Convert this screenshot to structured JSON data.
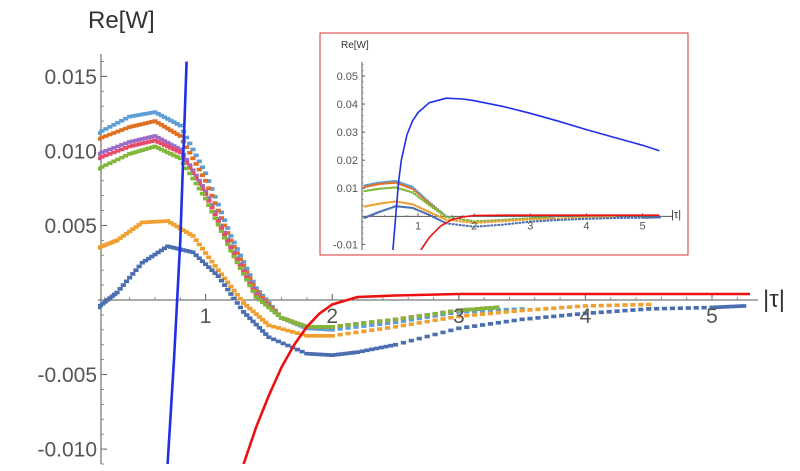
{
  "chart_data": [
    {
      "type": "line",
      "role": "main",
      "ylabel": "Re[W]",
      "xlabel": "|τ|",
      "xlim": [
        0.15,
        5.3
      ],
      "ylim": [
        -0.011,
        0.0165
      ],
      "x_ticks": [
        {
          "value": 1,
          "label": "1"
        },
        {
          "value": 2,
          "label": "2"
        },
        {
          "value": 3,
          "label": "3"
        },
        {
          "value": 4,
          "label": "4"
        },
        {
          "value": 5,
          "label": "5"
        }
      ],
      "y_ticks": [
        {
          "value": 0.015,
          "label": "0.015"
        },
        {
          "value": 0.01,
          "label": "0.010"
        },
        {
          "value": 0.005,
          "label": "0.005"
        },
        {
          "value": -0.005,
          "label": "-0.005"
        },
        {
          "value": -0.01,
          "label": "-0.010"
        }
      ],
      "series": [
        {
          "color": "#5e9ed6",
          "style": "points",
          "x": [
            0.15,
            0.4,
            0.6,
            0.8,
            1.0,
            1.2,
            1.4,
            1.6,
            1.8,
            2.0,
            2.5,
            3.0,
            3.5
          ],
          "y": [
            0.0112,
            0.0123,
            0.0126,
            0.0117,
            0.0085,
            0.0043,
            0.0008,
            -0.0012,
            -0.0019,
            -0.002,
            -0.0015,
            -0.0008,
            -0.0006
          ]
        },
        {
          "color": "#e07020",
          "style": "points",
          "x": [
            0.15,
            0.4,
            0.6,
            0.8,
            1.0,
            1.2,
            1.4,
            1.6,
            1.8,
            2.0,
            2.5,
            3.0,
            3.3
          ],
          "y": [
            0.0108,
            0.0116,
            0.012,
            0.011,
            0.008,
            0.004,
            0.0006,
            -0.0012,
            -0.0018,
            -0.0018,
            -0.0013,
            -0.0007,
            -0.0005
          ]
        },
        {
          "color": "#9a6cc8",
          "style": "points",
          "x": [
            0.15,
            0.4,
            0.6,
            0.8,
            1.0,
            1.2,
            1.4,
            1.6,
            1.8,
            2.0,
            2.5,
            3.0,
            3.3
          ],
          "y": [
            0.0098,
            0.0106,
            0.011,
            0.0101,
            0.0073,
            0.0036,
            0.0004,
            -0.0012,
            -0.0018,
            -0.0018,
            -0.0013,
            -0.0007,
            -0.0005
          ]
        },
        {
          "color": "#e84a6a",
          "style": "points",
          "x": [
            0.15,
            0.4,
            0.6,
            0.8,
            1.0,
            1.2,
            1.4,
            1.6,
            1.8,
            2.0,
            2.5,
            3.0,
            3.3
          ],
          "y": [
            0.0095,
            0.0103,
            0.0107,
            0.0099,
            0.0071,
            0.0035,
            0.0003,
            -0.0012,
            -0.0018,
            -0.0018,
            -0.0013,
            -0.0007,
            -0.0005
          ]
        },
        {
          "color": "#82b83a",
          "style": "points",
          "x": [
            0.15,
            0.4,
            0.6,
            0.8,
            1.0,
            1.2,
            1.4,
            1.6,
            1.8,
            2.0,
            2.5,
            3.0,
            3.3
          ],
          "y": [
            0.0088,
            0.0098,
            0.0103,
            0.0095,
            0.0068,
            0.0033,
            0.0002,
            -0.0012,
            -0.0018,
            -0.0018,
            -0.0013,
            -0.0007,
            -0.0005
          ]
        },
        {
          "color": "#f0a030",
          "style": "points",
          "x": [
            0.15,
            0.3,
            0.5,
            0.7,
            0.9,
            1.1,
            1.3,
            1.5,
            1.8,
            2.0,
            2.5,
            3.0,
            3.5,
            4.0,
            4.5
          ],
          "y": [
            0.0035,
            0.004,
            0.0052,
            0.0053,
            0.0043,
            0.002,
            -0.0002,
            -0.0017,
            -0.0024,
            -0.0024,
            -0.0018,
            -0.0011,
            -0.0007,
            -0.0004,
            -0.0003
          ]
        },
        {
          "color": "#4a6eb0",
          "style": "points",
          "x": [
            0.15,
            0.3,
            0.5,
            0.7,
            0.9,
            1.1,
            1.3,
            1.5,
            1.8,
            2.0,
            2.2,
            2.5,
            3.0,
            3.5,
            4.0,
            4.5,
            5.0,
            5.25
          ],
          "y": [
            -0.0005,
            0.0005,
            0.0025,
            0.0036,
            0.0032,
            0.0016,
            -0.0008,
            -0.0025,
            -0.0036,
            -0.0037,
            -0.0035,
            -0.003,
            -0.0019,
            -0.0013,
            -0.0009,
            -0.0006,
            -0.0005,
            -0.0004
          ]
        },
        {
          "color": "#2030e8",
          "style": "line",
          "x": [
            0.7,
            0.75,
            0.8,
            0.85
          ],
          "y": [
            -0.011,
            -0.004,
            0.004,
            0.016
          ]
        },
        {
          "color": "#ee1010",
          "style": "line",
          "x": [
            1.3,
            1.4,
            1.5,
            1.6,
            1.7,
            1.8,
            1.9,
            2.0,
            2.2,
            2.5,
            3.0,
            3.5,
            4.0,
            4.5,
            5.0,
            5.3
          ],
          "y": [
            -0.011,
            -0.0085,
            -0.0064,
            -0.0045,
            -0.003,
            -0.0018,
            -0.0009,
            -0.0003,
            0.0002,
            0.0003,
            0.0004,
            0.0004,
            0.0004,
            0.0004,
            0.0004,
            0.0004
          ]
        }
      ]
    },
    {
      "type": "line",
      "role": "inset",
      "ylabel": "Re[W]",
      "xlabel": "|τ|",
      "xlim": [
        0.0,
        5.4
      ],
      "ylim": [
        -0.012,
        0.055
      ],
      "x_ticks": [
        {
          "value": 1,
          "label": "1"
        },
        {
          "value": 2,
          "label": "2"
        },
        {
          "value": 3,
          "label": "3"
        },
        {
          "value": 4,
          "label": "4"
        },
        {
          "value": 5,
          "label": "5"
        }
      ],
      "y_ticks": [
        {
          "value": 0.05,
          "label": "0.05"
        },
        {
          "value": 0.04,
          "label": "0.04"
        },
        {
          "value": 0.03,
          "label": "0.03"
        },
        {
          "value": 0.02,
          "label": "0.02"
        },
        {
          "value": 0.01,
          "label": "0.01"
        },
        {
          "value": -0.01,
          "label": "-0.01"
        }
      ],
      "series": [
        {
          "color": "#5e9ed6",
          "style": "points",
          "x": [
            0.05,
            0.3,
            0.6,
            0.9,
            1.2,
            1.5,
            2.0,
            2.5,
            3.0,
            3.4
          ],
          "y": [
            0.011,
            0.012,
            0.0126,
            0.0105,
            0.005,
            0.0,
            -0.002,
            -0.0015,
            -0.0008,
            -0.0006
          ]
        },
        {
          "color": "#e07020",
          "style": "points",
          "x": [
            0.05,
            0.3,
            0.6,
            0.9,
            1.2,
            1.5,
            2.0,
            2.5,
            3.0,
            3.3
          ],
          "y": [
            0.0105,
            0.0115,
            0.012,
            0.0098,
            0.0045,
            -0.0002,
            -0.0018,
            -0.0013,
            -0.0007,
            -0.0005
          ]
        },
        {
          "color": "#82b83a",
          "style": "points",
          "x": [
            0.05,
            0.3,
            0.6,
            0.9,
            1.2,
            1.5,
            2.0,
            2.5,
            3.0,
            3.3
          ],
          "y": [
            0.009,
            0.0098,
            0.0103,
            0.0085,
            0.004,
            -0.0002,
            -0.0018,
            -0.0013,
            -0.0007,
            -0.0005
          ]
        },
        {
          "color": "#f0a030",
          "style": "points",
          "x": [
            0.05,
            0.3,
            0.6,
            0.9,
            1.2,
            1.5,
            2.0,
            2.5,
            3.0,
            3.5,
            4.0,
            4.5
          ],
          "y": [
            0.0035,
            0.0045,
            0.0053,
            0.0043,
            0.0015,
            -0.0012,
            -0.0024,
            -0.0018,
            -0.0011,
            -0.0007,
            -0.0004,
            -0.0003
          ]
        },
        {
          "color": "#4a6eb0",
          "style": "points",
          "x": [
            0.05,
            0.3,
            0.6,
            0.9,
            1.2,
            1.5,
            2.0,
            2.5,
            3.0,
            3.5,
            4.0,
            4.5,
            5.0,
            5.3
          ],
          "y": [
            -0.0005,
            0.0015,
            0.0036,
            0.003,
            0.0005,
            -0.0025,
            -0.0037,
            -0.003,
            -0.0019,
            -0.0013,
            -0.0009,
            -0.0006,
            -0.0005,
            -0.0004
          ]
        },
        {
          "color": "#2030e8",
          "style": "line",
          "x": [
            0.55,
            0.6,
            0.65,
            0.7,
            0.8,
            0.9,
            1.0,
            1.2,
            1.5,
            1.8,
            2.0,
            2.5,
            3.0,
            3.5,
            4.0,
            4.5,
            5.0,
            5.3
          ],
          "y": [
            -0.012,
            0.0,
            0.012,
            0.02,
            0.029,
            0.034,
            0.037,
            0.0405,
            0.0421,
            0.0418,
            0.0412,
            0.0392,
            0.0367,
            0.0339,
            0.0309,
            0.0281,
            0.0253,
            0.0234
          ]
        },
        {
          "color": "#ee1010",
          "style": "line",
          "x": [
            1.05,
            1.2,
            1.4,
            1.6,
            1.8,
            2.0,
            2.5,
            3.0,
            4.0,
            5.3
          ],
          "y": [
            -0.012,
            -0.0075,
            -0.0035,
            -0.0012,
            -0.0002,
            0.0003,
            0.0004,
            0.0004,
            0.0004,
            0.0004
          ]
        }
      ]
    }
  ]
}
